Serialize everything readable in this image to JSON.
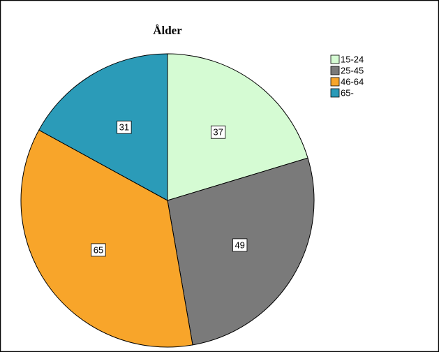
{
  "chart_data": {
    "type": "pie",
    "title": "Ålder",
    "categories": [
      "15-24",
      "25-45",
      "46-64",
      "65-"
    ],
    "values": [
      37,
      49,
      65,
      31
    ],
    "colors": [
      "#d5fbd3",
      "#7a7a7a",
      "#f8a52a",
      "#2b9bb8"
    ],
    "legend": "top-right"
  }
}
